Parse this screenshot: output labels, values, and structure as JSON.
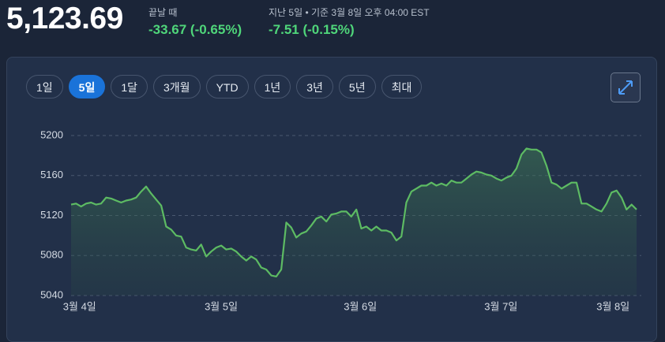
{
  "header": {
    "price": "5,123.69",
    "close_label": "끝날 때",
    "close_change": "-33.67 (-0.65%)",
    "period_label": "지난 5일 • 기준 3월 8일 오후 04:00 EST",
    "period_change": "-7.51 (-0.15%)"
  },
  "range_buttons": [
    "1일",
    "5일",
    "1달",
    "3개월",
    "YTD",
    "1년",
    "3년",
    "5년",
    "최대"
  ],
  "chart_data": {
    "type": "area",
    "series": [
      {
        "color": "#5dbb63",
        "values": [
          5131,
          5132,
          5129,
          5132,
          5133,
          5131,
          5132,
          5138,
          5137,
          5135,
          5133,
          5135,
          5136,
          5138,
          5144,
          5149,
          5142,
          5136,
          5130,
          5109,
          5106,
          5100,
          5099,
          5088,
          5086,
          5085,
          5091,
          5079,
          5084,
          5088,
          5090,
          5086,
          5087,
          5084,
          5079,
          5075,
          5079,
          5076,
          5068,
          5066,
          5060,
          5059,
          5066,
          5113,
          5108,
          5098,
          5102,
          5104,
          5110,
          5117,
          5119,
          5114,
          5121,
          5122,
          5124,
          5124,
          5119,
          5126,
          5107,
          5109,
          5105,
          5109,
          5105,
          5105,
          5103,
          5095,
          5099,
          5133,
          5144,
          5147,
          5150,
          5150,
          5153,
          5150,
          5152,
          5150,
          5155,
          5153,
          5153,
          5157,
          5161,
          5164,
          5163,
          5161,
          5160,
          5157,
          5155,
          5158,
          5160,
          5167,
          5181,
          5187,
          5186,
          5186,
          5183,
          5170,
          5153,
          5151,
          5147,
          5150,
          5153,
          5153,
          5132,
          5132,
          5129,
          5126,
          5124,
          5132,
          5143,
          5145,
          5138,
          5126,
          5131,
          5126
        ]
      }
    ],
    "ylim": [
      5040,
      5215
    ],
    "yticks": [
      5040,
      5080,
      5120,
      5160,
      5200
    ],
    "xlim": [
      0,
      113
    ],
    "xticks": [
      {
        "value": 1.7,
        "label": "3월 4일"
      },
      {
        "value": 30,
        "label": "3월 5일"
      },
      {
        "value": 57.8,
        "label": "3월 6일"
      },
      {
        "value": 85.9,
        "label": "3월 7일"
      },
      {
        "value": 108.3,
        "label": "3월 8일"
      }
    ],
    "grid": true
  }
}
